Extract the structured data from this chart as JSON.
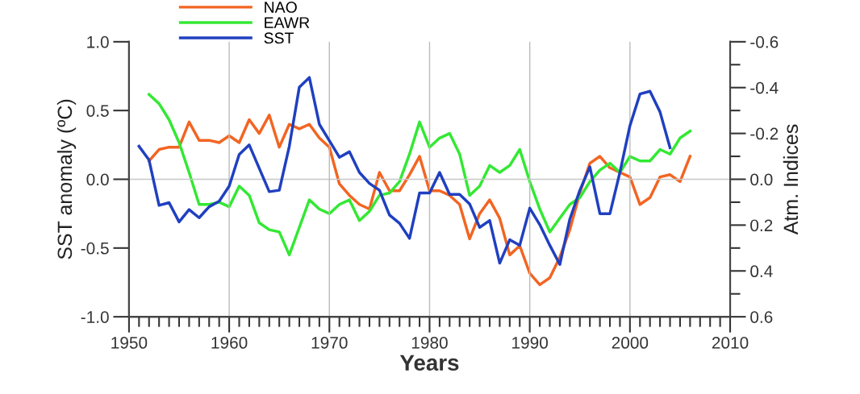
{
  "chart_data": {
    "type": "line",
    "xlabel": "Years",
    "ylabel": "SST anomaly (ºC)",
    "y2label": "Atm. Indices",
    "xlim": [
      1950,
      2010
    ],
    "xticks": [
      1950,
      {
        "value": 1951,
        "label": null
      },
      {
        "value": 1952,
        "label": null
      },
      {
        "value": 1953,
        "label": null
      },
      {
        "value": 1954,
        "label": null
      },
      {
        "value": 1955,
        "label": null
      },
      {
        "value": 1956,
        "label": null
      },
      {
        "value": 1957,
        "label": null
      },
      {
        "value": 1958,
        "label": null
      },
      {
        "value": 1959,
        "label": null
      },
      1960,
      {
        "value": 1961,
        "label": null
      },
      {
        "value": 1962,
        "label": null
      },
      {
        "value": 1963,
        "label": null
      },
      {
        "value": 1964,
        "label": null
      },
      {
        "value": 1965,
        "label": null
      },
      {
        "value": 1966,
        "label": null
      },
      {
        "value": 1967,
        "label": null
      },
      {
        "value": 1968,
        "label": null
      },
      {
        "value": 1969,
        "label": null
      },
      1970,
      {
        "value": 1971,
        "label": null
      },
      {
        "value": 1972,
        "label": null
      },
      {
        "value": 1973,
        "label": null
      },
      {
        "value": 1974,
        "label": null
      },
      {
        "value": 1975,
        "label": null
      },
      {
        "value": 1976,
        "label": null
      },
      {
        "value": 1977,
        "label": null
      },
      {
        "value": 1978,
        "label": null
      },
      {
        "value": 1979,
        "label": null
      },
      1980,
      {
        "value": 1981,
        "label": null
      },
      {
        "value": 1982,
        "label": null
      },
      {
        "value": 1983,
        "label": null
      },
      {
        "value": 1984,
        "label": null
      },
      {
        "value": 1985,
        "label": null
      },
      {
        "value": 1986,
        "label": null
      },
      {
        "value": 1987,
        "label": null
      },
      {
        "value": 1988,
        "label": null
      },
      {
        "value": 1989,
        "label": null
      },
      1990,
      {
        "value": 1991,
        "label": null
      },
      {
        "value": 1992,
        "label": null
      },
      {
        "value": 1993,
        "label": null
      },
      {
        "value": 1994,
        "label": null
      },
      {
        "value": 1995,
        "label": null
      },
      {
        "value": 1996,
        "label": null
      },
      {
        "value": 1997,
        "label": null
      },
      {
        "value": 1998,
        "label": null
      },
      {
        "value": 1999,
        "label": null
      },
      2000,
      {
        "value": 2001,
        "label": null
      },
      {
        "value": 2002,
        "label": null
      },
      {
        "value": 2003,
        "label": null
      },
      {
        "value": 2004,
        "label": null
      },
      {
        "value": 2005,
        "label": null
      },
      {
        "value": 2006,
        "label": null
      },
      {
        "value": 2007,
        "label": null
      },
      {
        "value": 2008,
        "label": null
      },
      {
        "value": 2009,
        "label": null
      },
      2010
    ],
    "ylim": [
      -1.0,
      1.0
    ],
    "yticks": [
      {
        "value": -1.0,
        "label": "-1.0"
      },
      {
        "value": -0.5,
        "label": "-0.5"
      },
      {
        "value": 0,
        "label": "0.0"
      },
      {
        "value": 0.5,
        "label": "0.5"
      },
      {
        "value": 1.0,
        "label": "1.0"
      }
    ],
    "y2lim": [
      0.6,
      -0.6
    ],
    "y2ticks": [
      {
        "value": 0.6,
        "label": "0.6"
      },
      {
        "value": 0.5,
        "label": null
      },
      {
        "value": 0.4,
        "label": "0.4"
      },
      {
        "value": 0.3,
        "label": null
      },
      {
        "value": 0.2,
        "label": "0.2"
      },
      {
        "value": 0.1,
        "label": null
      },
      {
        "value": 0,
        "label": "0.0"
      },
      {
        "value": -0.1,
        "label": null
      },
      {
        "value": -0.2,
        "label": "-0.2"
      },
      {
        "value": -0.3,
        "label": null
      },
      {
        "value": -0.4,
        "label": "-0.4"
      },
      {
        "value": -0.5,
        "label": null
      },
      {
        "value": -0.6,
        "label": "-0.6"
      }
    ],
    "grid": "x",
    "legend": "top left",
    "marker": "none",
    "line_style": "solid",
    "ref_lines": [
      {
        "axis": "y",
        "value": 0,
        "color": "#c8c8c8"
      }
    ],
    "series": [
      {
        "name": "NAO",
        "color": "#f26522",
        "axis": "y2",
        "x": [
          1952,
          1953,
          1954,
          1955,
          1956,
          1957,
          1958,
          1959,
          1960,
          1961,
          1962,
          1963,
          1964,
          1965,
          1966,
          1967,
          1968,
          1969,
          1970,
          1971,
          1972,
          1973,
          1974,
          1975,
          1976,
          1977,
          1978,
          1979,
          1980,
          1981,
          1982,
          1983,
          1984,
          1985,
          1986,
          1987,
          1988,
          1989,
          1990,
          1991,
          1992,
          1993,
          1994,
          1995,
          1996,
          1997,
          1998,
          1999,
          2000,
          2001,
          2002,
          2003,
          2004,
          2005,
          2006
        ],
        "values": [
          -0.08,
          -0.13,
          -0.14,
          -0.14,
          -0.25,
          -0.17,
          -0.17,
          -0.16,
          -0.19,
          -0.16,
          -0.26,
          -0.2,
          -0.28,
          -0.14,
          -0.24,
          -0.22,
          -0.24,
          -0.18,
          -0.14,
          0.02,
          0.07,
          0.11,
          0.13,
          -0.03,
          0.05,
          0.05,
          -0.02,
          -0.1,
          0.05,
          0.05,
          0.07,
          0.11,
          0.26,
          0.15,
          0.09,
          0.17,
          0.33,
          0.29,
          0.41,
          0.46,
          0.43,
          0.34,
          0.22,
          0.06,
          -0.07,
          -0.1,
          -0.05,
          -0.03,
          -0.01,
          0.11,
          0.08,
          -0.01,
          -0.02,
          0.01,
          -0.1
        ]
      },
      {
        "name": "EAWR",
        "color": "#33e833",
        "axis": "y2",
        "x": [
          1952,
          1953,
          1954,
          1955,
          1956,
          1957,
          1958,
          1959,
          1960,
          1961,
          1962,
          1963,
          1964,
          1965,
          1966,
          1967,
          1968,
          1969,
          1970,
          1971,
          1972,
          1973,
          1974,
          1975,
          1976,
          1977,
          1978,
          1979,
          1980,
          1981,
          1982,
          1983,
          1984,
          1985,
          1986,
          1987,
          1988,
          1989,
          1990,
          1991,
          1992,
          1993,
          1994,
          1995,
          1996,
          1997,
          1998,
          1999,
          2000,
          2001,
          2002,
          2003,
          2004,
          2005,
          2006
        ],
        "values": [
          -0.37,
          -0.33,
          -0.26,
          -0.16,
          -0.03,
          0.11,
          0.11,
          0.1,
          0.12,
          0.03,
          0.07,
          0.19,
          0.22,
          0.23,
          0.33,
          0.21,
          0.09,
          0.13,
          0.15,
          0.11,
          0.09,
          0.18,
          0.14,
          0.07,
          0.06,
          0.01,
          -0.11,
          -0.25,
          -0.14,
          -0.18,
          -0.2,
          -0.11,
          0.07,
          0.03,
          -0.06,
          -0.03,
          -0.06,
          -0.13,
          0.01,
          0.13,
          0.23,
          0.17,
          0.11,
          0.08,
          0.01,
          -0.04,
          -0.07,
          -0.03,
          -0.1,
          -0.08,
          -0.08,
          -0.13,
          -0.11,
          -0.18,
          -0.21
        ]
      },
      {
        "name": "SST",
        "color": "#2040c0",
        "x": [
          1951,
          1952,
          1953,
          1954,
          1955,
          1956,
          1957,
          1958,
          1959,
          1960,
          1961,
          1962,
          1963,
          1964,
          1965,
          1966,
          1967,
          1968,
          1969,
          1970,
          1971,
          1972,
          1973,
          1974,
          1975,
          1976,
          1977,
          1978,
          1979,
          1980,
          1981,
          1982,
          1983,
          1984,
          1985,
          1986,
          1987,
          1988,
          1989,
          1990,
          1991,
          1992,
          1993,
          1994,
          1995,
          1996,
          1997,
          1998,
          1999,
          2000,
          2001,
          2002,
          2003,
          2004
        ],
        "values": [
          0.24,
          0.14,
          -0.19,
          -0.17,
          -0.31,
          -0.22,
          -0.28,
          -0.2,
          -0.16,
          -0.05,
          0.18,
          0.25,
          0.08,
          -0.09,
          -0.08,
          0.24,
          0.67,
          0.74,
          0.4,
          0.28,
          0.16,
          0.2,
          0.05,
          -0.03,
          -0.08,
          -0.26,
          -0.32,
          -0.43,
          -0.1,
          -0.1,
          0.05,
          -0.11,
          -0.11,
          -0.18,
          -0.35,
          -0.3,
          -0.61,
          -0.44,
          -0.48,
          -0.21,
          -0.33,
          -0.48,
          -0.62,
          -0.29,
          -0.08,
          0.09,
          -0.25,
          -0.25,
          0.05,
          0.39,
          0.62,
          0.64,
          0.49,
          0.23
        ]
      }
    ]
  }
}
